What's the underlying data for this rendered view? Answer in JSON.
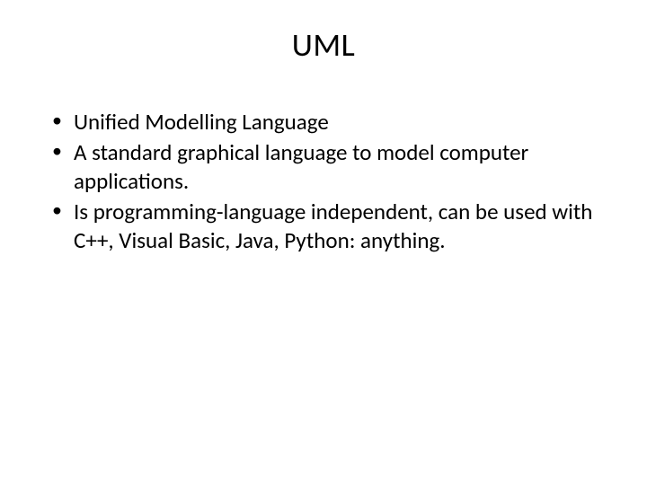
{
  "slide": {
    "title": "UML",
    "bullets": [
      "Unified Modelling Language",
      "A standard graphical language to model computer applications.",
      "Is programming-language independent, can be used with C++, Visual Basic, Java, Python: anything."
    ],
    "background_color": "#ffffff",
    "text_color": "#000000",
    "title_fontsize": 36,
    "body_fontsize": 25,
    "font_family": "Calibri"
  }
}
